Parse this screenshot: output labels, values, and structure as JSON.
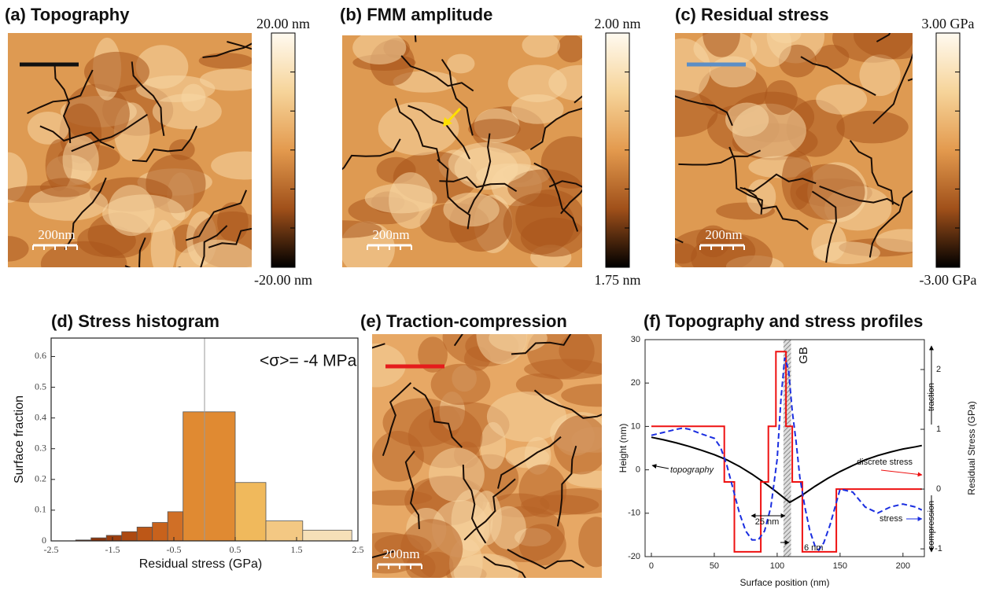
{
  "panels": [
    {
      "title": "(a) Topography",
      "scale_bar": "200nm",
      "colorbar": {
        "max": "20.00 nm",
        "min": "-20.00 nm"
      }
    },
    {
      "title": "(b) FMM amplitude",
      "scale_bar": "200nm",
      "colorbar": {
        "max": "2.00 nm",
        "min": "1.75 nm"
      }
    },
    {
      "title": "(c) Residual stress",
      "scale_bar": "200nm",
      "colorbar": {
        "max": "3.00 GPa",
        "min": "-3.00 GPa"
      }
    }
  ],
  "traction_panel": {
    "title": "(e) Traction-compression",
    "scale_bar": "200nm"
  },
  "chart_data": [
    {
      "type": "histogram",
      "title": "(d) Stress histogram",
      "x_label": "Residual stress (GPa)",
      "y_label": "Surface fraction",
      "bins": [
        -2.1,
        -1.85,
        -1.6,
        -1.35,
        -1.1,
        -0.85,
        -0.6,
        -0.35,
        0.5,
        1.0,
        1.6,
        2.4
      ],
      "values": [
        0.003,
        0.01,
        0.018,
        0.03,
        0.045,
        0.06,
        0.095,
        0.42,
        0.19,
        0.065,
        0.035
      ],
      "colors": [
        "#7a2e0a",
        "#8a340b",
        "#9c3e0e",
        "#ad4a12",
        "#bd5717",
        "#c8621c",
        "#d06f26",
        "#e08a32",
        "#f0b95c",
        "#f3c883",
        "#f6e0b8"
      ],
      "xlim": [
        -2.5,
        2.5
      ],
      "xticks": [
        -2.5,
        -1.5,
        -0.5,
        0.5,
        1.5,
        2.5
      ],
      "ylim": [
        0,
        0.66
      ],
      "yticks": [
        0,
        0.1,
        0.2,
        0.3,
        0.4,
        0.5,
        0.6
      ],
      "annotation": "<σ>= -4 MPa",
      "vline": 0
    },
    {
      "type": "line",
      "title": "(f) Topography and stress profiles",
      "x_label": "Surface position (nm)",
      "y_label": "Height (nm)",
      "y2_label": "Residual Stress (GPa)",
      "xlim": [
        -5,
        217
      ],
      "xticks": [
        0,
        50,
        100,
        150,
        200
      ],
      "ylim": [
        -20,
        30
      ],
      "yticks": [
        -20,
        -10,
        0,
        10,
        20,
        30
      ],
      "y2lim": [
        -1.13,
        2.5
      ],
      "y2ticks": [
        -1,
        0,
        1,
        2
      ],
      "series": [
        {
          "name": "topography",
          "color": "#000000",
          "dashed": false,
          "x": [
            0,
            10,
            20,
            30,
            40,
            50,
            60,
            70,
            80,
            90,
            100,
            110,
            120,
            130,
            140,
            150,
            160,
            170,
            180,
            190,
            200,
            210,
            215
          ],
          "values": [
            7.5,
            6.9,
            6.2,
            5.4,
            4.5,
            3.5,
            2.3,
            0.8,
            -1.0,
            -3.0,
            -5.2,
            -7.5,
            -5.8,
            -3.8,
            -2.0,
            -0.4,
            1.0,
            2.3,
            3.3,
            4.1,
            4.8,
            5.3,
            5.6
          ]
        },
        {
          "name": "discrete stress",
          "color": "#ee1111",
          "axis": "y2",
          "dashed": false,
          "x": [
            0,
            58,
            58,
            66,
            66,
            87,
            87,
            93,
            93,
            99,
            99,
            107,
            107,
            112,
            112,
            120,
            120,
            147,
            147,
            215
          ],
          "values": [
            1.05,
            1.05,
            0.12,
            0.12,
            -1.05,
            -1.05,
            0.12,
            0.12,
            1.05,
            1.05,
            2.3,
            2.3,
            1.05,
            1.05,
            0.12,
            0.12,
            -1.05,
            -1.05,
            0,
            0
          ]
        },
        {
          "name": "stress",
          "color": "#1a2ee0",
          "axis": "y2",
          "dashed": true,
          "x": [
            0,
            10,
            20,
            25,
            30,
            40,
            50,
            55,
            60,
            65,
            70,
            75,
            80,
            85,
            90,
            95,
            100,
            103,
            106,
            109,
            112,
            115,
            118,
            122,
            126,
            130,
            133,
            137,
            142,
            146,
            150,
            160,
            170,
            180,
            190,
            200,
            210,
            215
          ],
          "values": [
            0.9,
            0.95,
            1.0,
            1.02,
            1.0,
            0.92,
            0.85,
            0.7,
            0.4,
            0.0,
            -0.4,
            -0.7,
            -0.85,
            -0.85,
            -0.7,
            -0.3,
            0.5,
            1.5,
            2.2,
            2.0,
            1.3,
            0.8,
            0.2,
            -0.3,
            -0.7,
            -0.95,
            -1.02,
            -0.9,
            -0.6,
            -0.3,
            0.0,
            -0.05,
            -0.3,
            -0.4,
            -0.3,
            -0.25,
            -0.3,
            -0.35
          ]
        }
      ],
      "annotations": [
        "GB",
        "25 nm",
        "6 nm",
        "traction",
        "compression"
      ]
    }
  ]
}
